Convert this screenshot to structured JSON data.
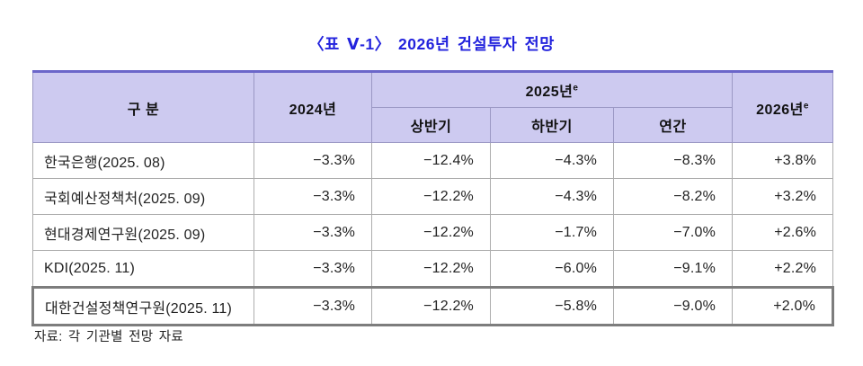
{
  "title": "〈표 Ⅴ-1〉 2026년 건설투자 전망",
  "table": {
    "header": {
      "category": "구 분",
      "y2024": "2024년",
      "y2025": {
        "label": "2025년",
        "sup": "e"
      },
      "y2026": {
        "label": "2026년",
        "sup": "e"
      },
      "sub_columns": [
        "상반기",
        "하반기",
        "연간"
      ]
    },
    "rows": [
      {
        "org": "한국은행(2025. 08)",
        "y2024": "−3.3%",
        "h1": "−12.4%",
        "h2": "−4.3%",
        "annual": "−8.3%",
        "y2026": "+3.8%",
        "highlight": false
      },
      {
        "org": "국회예산정책처(2025. 09)",
        "y2024": "−3.3%",
        "h1": "−12.2%",
        "h2": "−4.3%",
        "annual": "−8.2%",
        "y2026": "+3.2%",
        "highlight": false
      },
      {
        "org": "현대경제연구원(2025. 09)",
        "y2024": "−3.3%",
        "h1": "−12.2%",
        "h2": "−1.7%",
        "annual": "−7.0%",
        "y2026": "+2.6%",
        "highlight": false
      },
      {
        "org": "KDI(2025. 11)",
        "y2024": "−3.3%",
        "h1": "−12.2%",
        "h2": "−6.0%",
        "annual": "−9.1%",
        "y2026": "+2.2%",
        "highlight": false
      },
      {
        "org": "대한건설정책연구원(2025. 11)",
        "y2024": "−3.3%",
        "h1": "−12.2%",
        "h2": "−5.8%",
        "annual": "−9.0%",
        "y2026": "+2.0%",
        "highlight": true
      }
    ]
  },
  "source": "자료: 각 기관별 전망 자료",
  "colors": {
    "title_blue": "#2323dd",
    "header_bg": "#cdcaf0",
    "header_top_border": "#6b66c9",
    "grid_line": "#adadad",
    "highlight_border": "#7d7d7d"
  },
  "chart_data": {
    "type": "table",
    "title": "〈표 Ⅴ-1〉 2026년 건설투자 전망",
    "columns": [
      "구 분",
      "2024년",
      "2025년e 상반기",
      "2025년e 하반기",
      "2025년e 연간",
      "2026년e"
    ],
    "rows": [
      [
        "한국은행(2025. 08)",
        "−3.3%",
        "−12.4%",
        "−4.3%",
        "−8.3%",
        "+3.8%"
      ],
      [
        "국회예산정책처(2025. 09)",
        "−3.3%",
        "−12.2%",
        "−4.3%",
        "−8.2%",
        "+3.2%"
      ],
      [
        "현대경제연구원(2025. 09)",
        "−3.3%",
        "−12.2%",
        "−1.7%",
        "−7.0%",
        "+2.6%"
      ],
      [
        "KDI(2025. 11)",
        "−3.3%",
        "−12.2%",
        "−6.0%",
        "−9.1%",
        "+2.2%"
      ],
      [
        "대한건설정책연구원(2025. 11)",
        "−3.3%",
        "−12.2%",
        "−5.8%",
        "−9.0%",
        "+2.0%"
      ]
    ],
    "highlighted_row": "대한건설정책연구원(2025. 11)"
  }
}
